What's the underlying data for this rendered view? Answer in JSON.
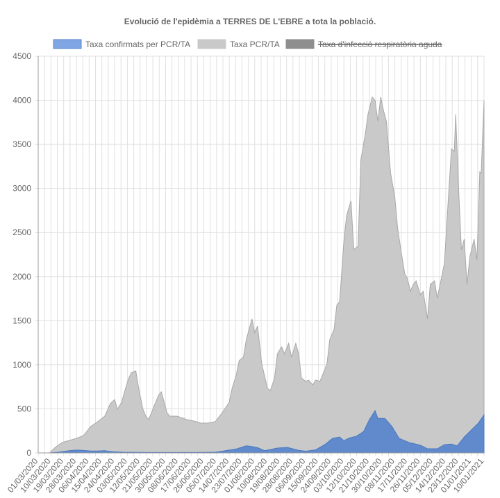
{
  "chart_data": {
    "type": "area",
    "title": "Evolució de l'epidèmia a TERRES DE L'EBRE a tota la població.",
    "xlabel": "",
    "ylabel": "",
    "ylim": [
      0,
      4500
    ],
    "yticks": [
      0,
      500,
      1000,
      1500,
      2000,
      2500,
      3000,
      3500,
      4000,
      4500
    ],
    "x_unit": "days since 01/03/2020",
    "xlim": [
      0,
      315
    ],
    "xtick_step_days": 9,
    "xtick_labels": [
      "01/03/2020",
      "10/03/2020",
      "19/03/2020",
      "28/03/2020",
      "06/04/2020",
      "15/04/2020",
      "24/04/2020",
      "03/05/2020",
      "12/05/2020",
      "21/05/2020",
      "30/05/2020",
      "08/06/2020",
      "17/06/2020",
      "26/06/2020",
      "05/07/2020",
      "14/07/2020",
      "23/07/2020",
      "01/08/2020",
      "10/08/2020",
      "19/08/2020",
      "28/08/2020",
      "06/09/2020",
      "15/09/2020",
      "24/09/2020",
      "03/10/2020",
      "12/10/2020",
      "21/10/2020",
      "30/10/2020",
      "08/11/2020",
      "17/11/2020",
      "26/11/2020",
      "05/12/2020",
      "14/12/2020",
      "23/12/2020",
      "01/01/2021",
      "10/01/2021"
    ],
    "grid": true,
    "legend_position": "top",
    "series": [
      {
        "name": "Taxa confirmats per PCR/TA",
        "color": "#7fa6e3",
        "fill": "#5b87cc",
        "hidden": false,
        "points": [
          [
            0,
            0
          ],
          [
            8,
            0
          ],
          [
            14,
            8
          ],
          [
            17,
            15
          ],
          [
            22,
            25
          ],
          [
            27,
            32
          ],
          [
            32,
            28
          ],
          [
            37,
            22
          ],
          [
            42,
            22
          ],
          [
            47,
            25
          ],
          [
            52,
            15
          ],
          [
            60,
            8
          ],
          [
            80,
            5
          ],
          [
            110,
            5
          ],
          [
            125,
            8
          ],
          [
            130,
            20
          ],
          [
            140,
            45
          ],
          [
            147,
            80
          ],
          [
            152,
            70
          ],
          [
            155,
            60
          ],
          [
            160,
            25
          ],
          [
            169,
            55
          ],
          [
            176,
            63
          ],
          [
            184,
            30
          ],
          [
            189,
            20
          ],
          [
            196,
            35
          ],
          [
            203,
            100
          ],
          [
            208,
            165
          ],
          [
            213,
            180
          ],
          [
            216,
            140
          ],
          [
            220,
            170
          ],
          [
            225,
            190
          ],
          [
            230,
            245
          ],
          [
            234,
            378
          ],
          [
            238,
            480
          ],
          [
            240,
            393
          ],
          [
            245,
            390
          ],
          [
            250,
            300
          ],
          [
            255,
            165
          ],
          [
            262,
            118
          ],
          [
            270,
            87
          ],
          [
            275,
            47
          ],
          [
            282,
            47
          ],
          [
            287,
            94
          ],
          [
            292,
            100
          ],
          [
            296,
            80
          ],
          [
            301,
            180
          ],
          [
            307,
            275
          ],
          [
            311,
            338
          ],
          [
            315,
            433
          ]
        ]
      },
      {
        "name": "Taxa PCR/TA",
        "color": "#c9c9c9",
        "fill": "#c9c9c9",
        "hidden": false,
        "points": [
          [
            0,
            0
          ],
          [
            8,
            0
          ],
          [
            12,
            63
          ],
          [
            17,
            118
          ],
          [
            22,
            142
          ],
          [
            27,
            165
          ],
          [
            32,
            197
          ],
          [
            37,
            299
          ],
          [
            42,
            354
          ],
          [
            47,
            417
          ],
          [
            51,
            559
          ],
          [
            54,
            606
          ],
          [
            56,
            496
          ],
          [
            59,
            575
          ],
          [
            61,
            693
          ],
          [
            64,
            850
          ],
          [
            66,
            913
          ],
          [
            69,
            929
          ],
          [
            71,
            732
          ],
          [
            74,
            496
          ],
          [
            76,
            417
          ],
          [
            78,
            378
          ],
          [
            81,
            496
          ],
          [
            85,
            653
          ],
          [
            87,
            693
          ],
          [
            89,
            575
          ],
          [
            91,
            456
          ],
          [
            93,
            417
          ],
          [
            98,
            417
          ],
          [
            101,
            401
          ],
          [
            105,
            378
          ],
          [
            110,
            362
          ],
          [
            115,
            338
          ],
          [
            120,
            338
          ],
          [
            125,
            354
          ],
          [
            130,
            456
          ],
          [
            135,
            575
          ],
          [
            137,
            732
          ],
          [
            140,
            889
          ],
          [
            142,
            1047
          ],
          [
            145,
            1086
          ],
          [
            147,
            1283
          ],
          [
            151,
            1519
          ],
          [
            153,
            1362
          ],
          [
            155,
            1440
          ],
          [
            158,
            1007
          ],
          [
            162,
            732
          ],
          [
            164,
            708
          ],
          [
            167,
            850
          ],
          [
            169,
            1125
          ],
          [
            172,
            1204
          ],
          [
            174,
            1125
          ],
          [
            177,
            1243
          ],
          [
            179,
            1086
          ],
          [
            182,
            1243
          ],
          [
            184,
            1125
          ],
          [
            186,
            850
          ],
          [
            189,
            811
          ],
          [
            191,
            826
          ],
          [
            194,
            771
          ],
          [
            196,
            826
          ],
          [
            199,
            811
          ],
          [
            201,
            889
          ],
          [
            204,
            1007
          ],
          [
            206,
            1283
          ],
          [
            209,
            1401
          ],
          [
            211,
            1676
          ],
          [
            213,
            1716
          ],
          [
            216,
            2408
          ],
          [
            218,
            2699
          ],
          [
            221,
            2857
          ],
          [
            223,
            2306
          ],
          [
            226,
            2345
          ],
          [
            228,
            3329
          ],
          [
            231,
            3604
          ],
          [
            233,
            3841
          ],
          [
            236,
            4037
          ],
          [
            238,
            3998
          ],
          [
            240,
            3762
          ],
          [
            242,
            4037
          ],
          [
            244,
            3880
          ],
          [
            246,
            3762
          ],
          [
            249,
            3172
          ],
          [
            252,
            2896
          ],
          [
            254,
            2542
          ],
          [
            257,
            2227
          ],
          [
            259,
            2030
          ],
          [
            261,
            1975
          ],
          [
            263,
            1834
          ],
          [
            265,
            1912
          ],
          [
            267,
            1952
          ],
          [
            270,
            1794
          ],
          [
            272,
            1834
          ],
          [
            275,
            1519
          ],
          [
            277,
            1912
          ],
          [
            280,
            1952
          ],
          [
            282,
            1755
          ],
          [
            287,
            2148
          ],
          [
            290,
            2935
          ],
          [
            292,
            3447
          ],
          [
            294,
            3423
          ],
          [
            295,
            3841
          ],
          [
            297,
            3014
          ],
          [
            299,
            2306
          ],
          [
            301,
            2424
          ],
          [
            303,
            1912
          ],
          [
            305,
            2227
          ],
          [
            308,
            2424
          ],
          [
            310,
            2188
          ],
          [
            312,
            3187
          ],
          [
            313,
            3172
          ],
          [
            315,
            3998
          ]
        ]
      },
      {
        "name": "Taxa d'infecció respiratòria aguda",
        "color": "#8e8e8e",
        "fill": "#8e8e8e",
        "hidden": true,
        "points": []
      }
    ]
  }
}
